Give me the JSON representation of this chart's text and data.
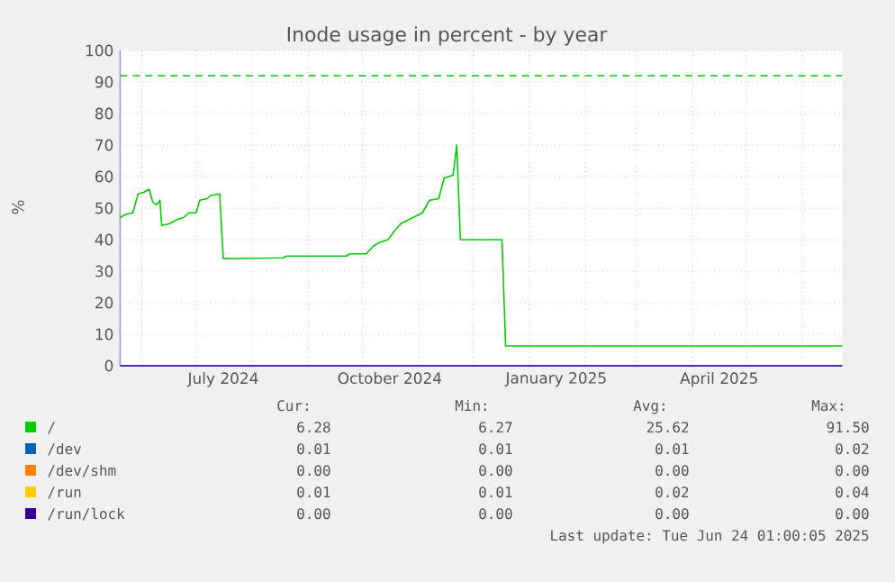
{
  "chart_data": {
    "type": "line",
    "title": "Inode usage in percent - by year",
    "ylabel": "%",
    "xlim": [
      "2024-05-20",
      "2025-06-23"
    ],
    "ylim": [
      0,
      100
    ],
    "yticks": [
      0,
      10,
      20,
      30,
      40,
      50,
      60,
      70,
      80,
      90,
      100
    ],
    "xticks": [
      {
        "value": "2024-06-01",
        "label": null
      },
      {
        "value": "2024-07-01",
        "label": null
      },
      {
        "value": "2024-07-16",
        "label": "July 2024"
      },
      {
        "value": "2024-08-01",
        "label": null
      },
      {
        "value": "2024-09-01",
        "label": null
      },
      {
        "value": "2024-10-01",
        "label": null
      },
      {
        "value": "2024-10-16",
        "label": "October 2024"
      },
      {
        "value": "2024-11-01",
        "label": null
      },
      {
        "value": "2024-12-01",
        "label": null
      },
      {
        "value": "2025-01-01",
        "label": null
      },
      {
        "value": "2025-01-16",
        "label": "January 2025"
      },
      {
        "value": "2025-02-01",
        "label": null
      },
      {
        "value": "2025-03-01",
        "label": null
      },
      {
        "value": "2025-04-01",
        "label": null
      },
      {
        "value": "2025-04-16",
        "label": "April 2025"
      },
      {
        "value": "2025-05-01",
        "label": null
      },
      {
        "value": "2025-06-01",
        "label": null
      }
    ],
    "grid": true,
    "legend": "bottom",
    "series": [
      {
        "name": "/dev",
        "color": "#0066b3",
        "values": [
          null
        ]
      },
      {
        "name": "/dev/shm",
        "color": "#ff8000",
        "values": [
          null
        ]
      },
      {
        "name": "/run",
        "color": "#ffcc00",
        "values": [
          null
        ]
      },
      {
        "name": "/run/lock",
        "color": "#330099",
        "x": [
          "2024-05-20",
          "2025-06-23"
        ],
        "values": [
          0,
          0
        ]
      },
      {
        "name": "/",
        "color": "#00cc00",
        "x": [
          "2024-05-20",
          "2024-05-23",
          "2024-05-27",
          "2024-05-30",
          "2024-06-02",
          "2024-06-05",
          "2024-06-07",
          "2024-06-09",
          "2024-06-11",
          "2024-06-12",
          "2024-06-16",
          "2024-06-21",
          "2024-06-24",
          "2024-06-27",
          "2024-07-01",
          "2024-07-03",
          "2024-07-07",
          "2024-07-09",
          "2024-07-14",
          "2024-07-16",
          "2024-08-18",
          "2024-08-20",
          "2024-09-22",
          "2024-09-24",
          "2024-10-03",
          "2024-10-07",
          "2024-10-10",
          "2024-10-15",
          "2024-10-19",
          "2024-10-22",
          "2024-10-27",
          "2024-11-03",
          "2024-11-07",
          "2024-11-12",
          "2024-11-15",
          "2024-11-20",
          "2024-11-22",
          "2024-11-24",
          "2024-12-17",
          "2024-12-19",
          "2025-06-23"
        ],
        "values": [
          47,
          48,
          48.5,
          54.5,
          55,
          56,
          52,
          51,
          52.5,
          44.5,
          45,
          46.5,
          47,
          48.5,
          48.5,
          52.5,
          53,
          54,
          54.5,
          34,
          34.2,
          34.8,
          34.8,
          35.5,
          35.5,
          38,
          39,
          40,
          43,
          45,
          46.5,
          48.5,
          52.5,
          53,
          59.5,
          60.5,
          70,
          40,
          40,
          6.3,
          6.3
        ]
      }
    ],
    "ref_lines": [
      {
        "axis": "y",
        "value": 92,
        "color": "#00cc00",
        "line_style": "dashed"
      }
    ],
    "annotations": [
      "Cur:",
      "Min:",
      "Avg:",
      "Max:",
      "6.28",
      "6.27",
      "25.62",
      "91.50",
      "0.01",
      "0.01",
      "0.01",
      "0.02",
      "0.00",
      "0.00",
      "0.00",
      "0.00",
      "0.01",
      "0.01",
      "0.02",
      "0.04",
      "0.00",
      "0.00",
      "0.00",
      "0.00",
      "Last update: Tue Jun 24 01:00:05 2025"
    ]
  }
}
